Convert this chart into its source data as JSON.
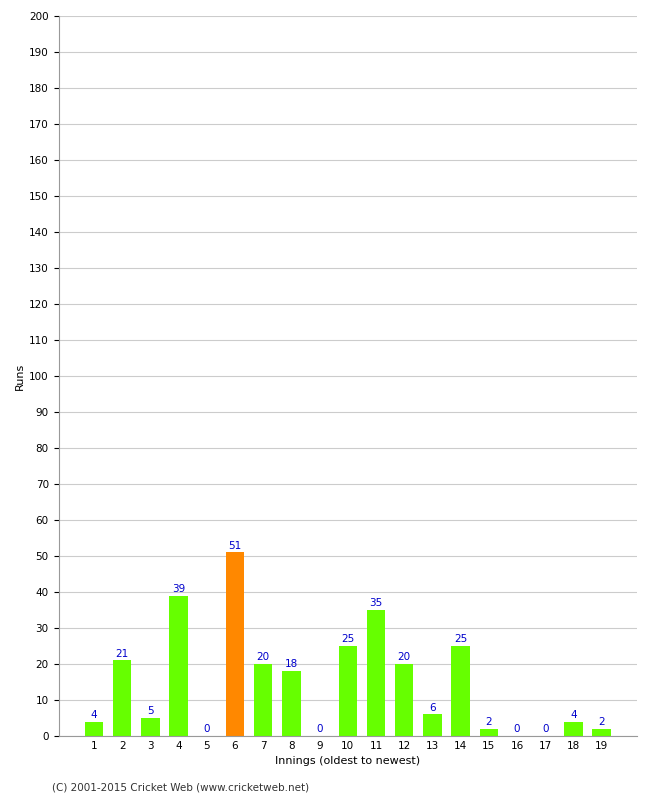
{
  "xlabel": "Innings (oldest to newest)",
  "ylabel": "Runs",
  "categories": [
    1,
    2,
    3,
    4,
    5,
    6,
    7,
    8,
    9,
    10,
    11,
    12,
    13,
    14,
    15,
    16,
    17,
    18,
    19
  ],
  "values": [
    4,
    21,
    5,
    39,
    0,
    51,
    20,
    18,
    0,
    25,
    35,
    20,
    6,
    25,
    2,
    0,
    0,
    4,
    2
  ],
  "bar_colors": [
    "#66ff00",
    "#66ff00",
    "#66ff00",
    "#66ff00",
    "#66ff00",
    "#ff8800",
    "#66ff00",
    "#66ff00",
    "#66ff00",
    "#66ff00",
    "#66ff00",
    "#66ff00",
    "#66ff00",
    "#66ff00",
    "#66ff00",
    "#66ff00",
    "#66ff00",
    "#66ff00",
    "#66ff00"
  ],
  "label_color": "#0000cc",
  "ylim": [
    0,
    200
  ],
  "yticks": [
    0,
    10,
    20,
    30,
    40,
    50,
    60,
    70,
    80,
    90,
    100,
    110,
    120,
    130,
    140,
    150,
    160,
    170,
    180,
    190,
    200
  ],
  "grid_color": "#cccccc",
  "background_color": "#ffffff",
  "footer": "(C) 2001-2015 Cricket Web (www.cricketweb.net)",
  "label_fontsize": 7.5,
  "axis_label_fontsize": 8,
  "bar_width": 0.65
}
